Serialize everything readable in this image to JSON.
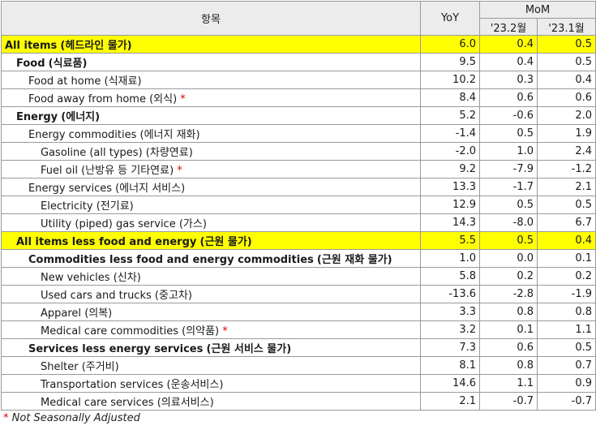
{
  "header": {
    "item": "항목",
    "yoy": "YoY",
    "mom": "MoM",
    "mom_cols": [
      "'23.2월",
      "'23.1월"
    ]
  },
  "rows": [
    {
      "label": "All items",
      "label_kr": "(헤드라인 물가)",
      "indent": 0,
      "bold": true,
      "highlight": true,
      "star": false,
      "yoy": "6.0",
      "m1": "0.4",
      "m2": "0.5"
    },
    {
      "label": "Food",
      "label_kr": "(식료품)",
      "indent": 1,
      "bold": true,
      "highlight": false,
      "star": false,
      "yoy": "9.5",
      "m1": "0.4",
      "m2": "0.5"
    },
    {
      "label": "Food at home",
      "label_kr": "(식재료)",
      "indent": 2,
      "bold": false,
      "highlight": false,
      "star": false,
      "yoy": "10.2",
      "m1": "0.3",
      "m2": "0.4"
    },
    {
      "label": "Food away from home",
      "label_kr": "(외식)",
      "indent": 2,
      "bold": false,
      "highlight": false,
      "star": true,
      "yoy": "8.4",
      "m1": "0.6",
      "m2": "0.6"
    },
    {
      "label": "Energy",
      "label_kr": "(에너지)",
      "indent": 1,
      "bold": true,
      "highlight": false,
      "star": false,
      "yoy": "5.2",
      "m1": "-0.6",
      "m2": "2.0"
    },
    {
      "label": "Energy commodities",
      "label_kr": "(에너지 재화)",
      "indent": 2,
      "bold": false,
      "highlight": false,
      "star": false,
      "yoy": "-1.4",
      "m1": "0.5",
      "m2": "1.9"
    },
    {
      "label": "Gasoline (all types)",
      "label_kr": "(차량연료)",
      "indent": 3,
      "bold": false,
      "highlight": false,
      "star": false,
      "yoy": "-2.0",
      "m1": "1.0",
      "m2": "2.4"
    },
    {
      "label": "Fuel oil",
      "label_kr": "(난방유 등 기타연료)",
      "indent": 3,
      "bold": false,
      "highlight": false,
      "star": true,
      "yoy": "9.2",
      "m1": "-7.9",
      "m2": "-1.2"
    },
    {
      "label": "Energy services",
      "label_kr": "(에너지 서비스)",
      "indent": 2,
      "bold": false,
      "highlight": false,
      "star": false,
      "yoy": "13.3",
      "m1": "-1.7",
      "m2": "2.1"
    },
    {
      "label": "Electricity",
      "label_kr": "(전기료)",
      "indent": 3,
      "bold": false,
      "highlight": false,
      "star": false,
      "yoy": "12.9",
      "m1": "0.5",
      "m2": "0.5"
    },
    {
      "label": "Utility (piped) gas service",
      "label_kr": "(가스)",
      "indent": 3,
      "bold": false,
      "highlight": false,
      "star": false,
      "yoy": "14.3",
      "m1": "-8.0",
      "m2": "6.7"
    },
    {
      "label": "All items less food and energy",
      "label_kr": "(근원 물가)",
      "indent": 1,
      "bold": true,
      "highlight": true,
      "star": false,
      "yoy": "5.5",
      "m1": "0.5",
      "m2": "0.4"
    },
    {
      "label": "Commodities less food and energy commodities",
      "label_kr": "(근원 재화 물가)",
      "indent": 2,
      "bold": true,
      "highlight": false,
      "star": false,
      "yoy": "1.0",
      "m1": "0.0",
      "m2": "0.1"
    },
    {
      "label": "New vehicles",
      "label_kr": "(신차)",
      "indent": 3,
      "bold": false,
      "highlight": false,
      "star": false,
      "yoy": "5.8",
      "m1": "0.2",
      "m2": "0.2"
    },
    {
      "label": "Used cars and trucks",
      "label_kr": "(중고차)",
      "indent": 3,
      "bold": false,
      "highlight": false,
      "star": false,
      "yoy": "-13.6",
      "m1": "-2.8",
      "m2": "-1.9"
    },
    {
      "label": "Apparel",
      "label_kr": "(의복)",
      "indent": 3,
      "bold": false,
      "highlight": false,
      "star": false,
      "yoy": "3.3",
      "m1": "0.8",
      "m2": "0.8"
    },
    {
      "label": "Medical care commodities",
      "label_kr": "(의약품)",
      "indent": 3,
      "bold": false,
      "highlight": false,
      "star": true,
      "yoy": "3.2",
      "m1": "0.1",
      "m2": "1.1"
    },
    {
      "label": "Services less energy services",
      "label_kr": "(근원 서비스 물가)",
      "indent": 2,
      "bold": true,
      "highlight": false,
      "star": false,
      "yoy": "7.3",
      "m1": "0.6",
      "m2": "0.5"
    },
    {
      "label": "Shelter",
      "label_kr": "(주거비)",
      "indent": 3,
      "bold": false,
      "highlight": false,
      "star": false,
      "yoy": "8.1",
      "m1": "0.8",
      "m2": "0.7"
    },
    {
      "label": "Transportation services",
      "label_kr": "(운송서비스)",
      "indent": 3,
      "bold": false,
      "highlight": false,
      "star": false,
      "yoy": "14.6",
      "m1": "1.1",
      "m2": "0.9"
    },
    {
      "label": "Medical care services",
      "label_kr": "(의료서비스)",
      "indent": 3,
      "bold": false,
      "highlight": false,
      "star": false,
      "yoy": "2.1",
      "m1": "-0.7",
      "m2": "-0.7"
    }
  ],
  "star_mark": "*",
  "footnote": {
    "star": "*",
    "text": "Not Seasonally Adjusted"
  },
  "colors": {
    "highlight": "#ffff00",
    "star": "#e00000",
    "header_bg": "#ececec",
    "border": "#9a9a9a"
  }
}
